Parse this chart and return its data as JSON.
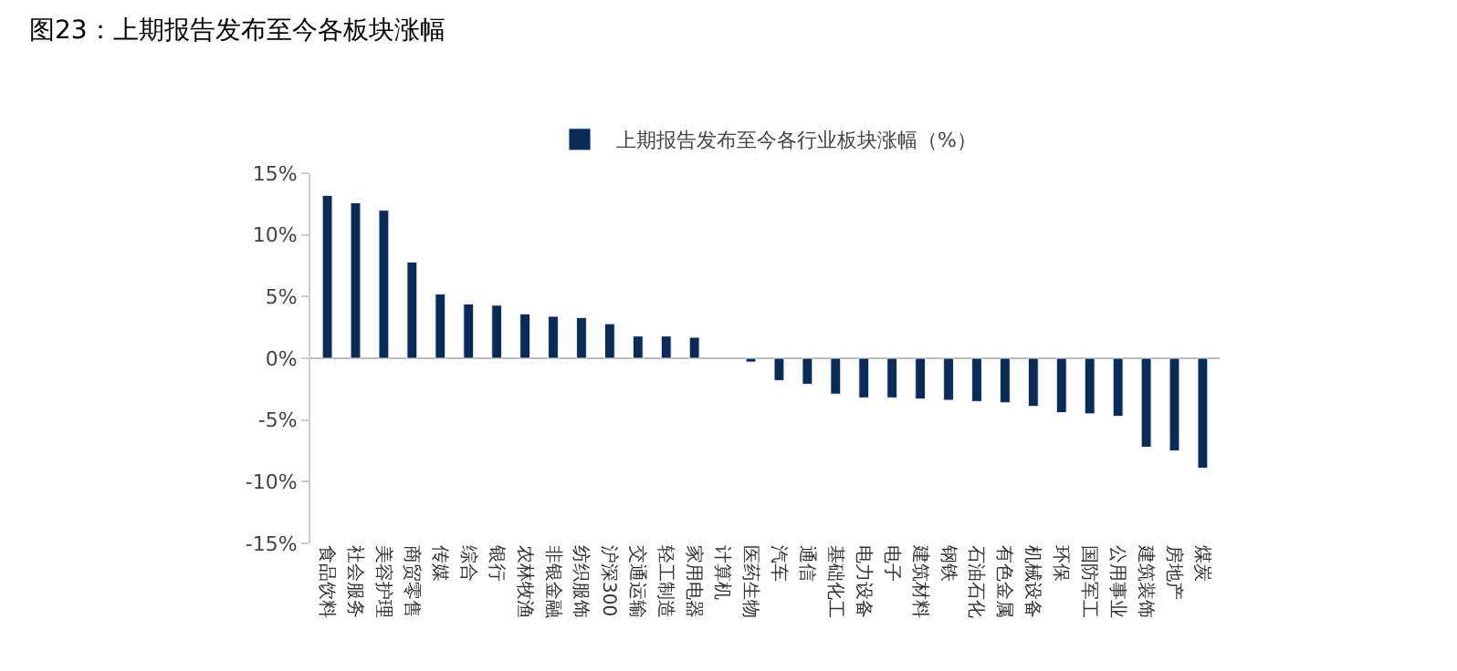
{
  "chart_data": {
    "type": "bar",
    "title": "图23：上期报告发布至今各板块涨幅",
    "categories": [
      "食品饮料",
      "社会服务",
      "美容护理",
      "商贸零售",
      "传媒",
      "综合",
      "银行",
      "农林牧渔",
      "非银金融",
      "纺织服饰",
      "沪深300",
      "交通运输",
      "轻工制造",
      "家用电器",
      "计算机",
      "医药生物",
      "汽车",
      "通信",
      "基础化工",
      "电力设备",
      "电子",
      "建筑材料",
      "钢铁",
      "石油石化",
      "有色金属",
      "机械设备",
      "环保",
      "国防军工",
      "公用事业",
      "建筑装饰",
      "房地产",
      "煤炭"
    ],
    "series": [
      {
        "name": "上期报告发布至今各行业板块涨幅（%）",
        "color": "#0b2a55",
        "values": [
          13.2,
          12.6,
          12.0,
          7.8,
          5.2,
          4.4,
          4.3,
          3.6,
          3.4,
          3.3,
          2.8,
          1.8,
          1.8,
          1.7,
          null,
          -0.3,
          -1.8,
          -2.1,
          -2.9,
          -3.2,
          -3.2,
          -3.3,
          -3.4,
          -3.5,
          -3.6,
          -3.9,
          -4.4,
          -4.5,
          -4.7,
          -7.2,
          -7.5,
          -8.9
        ]
      }
    ],
    "ylim": [
      -15,
      15
    ],
    "yticks": [
      {
        "value": -15,
        "label": "-15%"
      },
      {
        "value": -10,
        "label": "-10%"
      },
      {
        "value": -5,
        "label": "-5%"
      },
      {
        "value": 0,
        "label": "0%"
      },
      {
        "value": 5,
        "label": "5%"
      },
      {
        "value": 10,
        "label": "10%"
      },
      {
        "value": 15,
        "label": "15%"
      }
    ],
    "legend": "top"
  }
}
